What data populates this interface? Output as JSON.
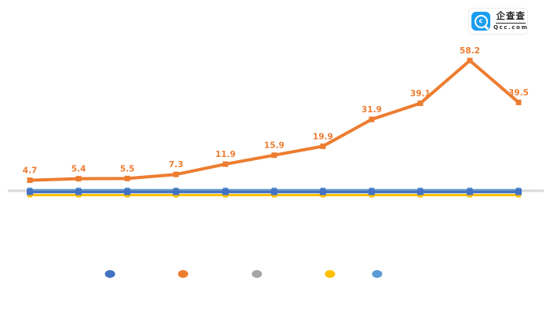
{
  "background_color": "#ffffff",
  "logo": {
    "brand_name": "企查查",
    "brand_domain": "Qcc.com",
    "icon_color": "#1B9DF0",
    "text_color": "#2b2b2b",
    "box_color": "#ffffff"
  },
  "chart_data": {
    "type": "line",
    "title": "",
    "xlabel": "",
    "ylabel": "",
    "x_axis_labels_visible": false,
    "y_axis_visible": false,
    "gridlines": false,
    "num_points": 11,
    "axis_line_color": "#D9D9D9",
    "label_color": "#ED7D31",
    "series": [
      {
        "name": "lightblue-series",
        "color": "#5B9BD5",
        "marker": "square",
        "data_labels_visible": false,
        "approx_value": 0.3
      },
      {
        "name": "gray-series",
        "color": "#A5A5A5",
        "marker": "square",
        "data_labels_visible": false,
        "approx_value": 0.2
      },
      {
        "name": "yellow-series",
        "color": "#FFC000",
        "marker": "square",
        "data_labels_visible": false,
        "approx_value": 0.1
      },
      {
        "name": "blue-series",
        "color": "#4472C4",
        "marker": "square",
        "data_labels_visible": false,
        "approx_value": 0.3
      },
      {
        "name": "orange-series",
        "color": "#ED7D31",
        "marker": "square",
        "data_labels_visible": true,
        "values": [
          4.7,
          5.4,
          5.5,
          7.3,
          11.9,
          15.9,
          19.9,
          31.9,
          39.1,
          58.2,
          39.5
        ]
      }
    ],
    "legend": {
      "position": "bottom",
      "labels_visible": false,
      "marker_colors": [
        "#4472C4",
        "#ED7D31",
        "#A5A5A5",
        "#FFC000",
        "#5B9BD5"
      ]
    }
  }
}
